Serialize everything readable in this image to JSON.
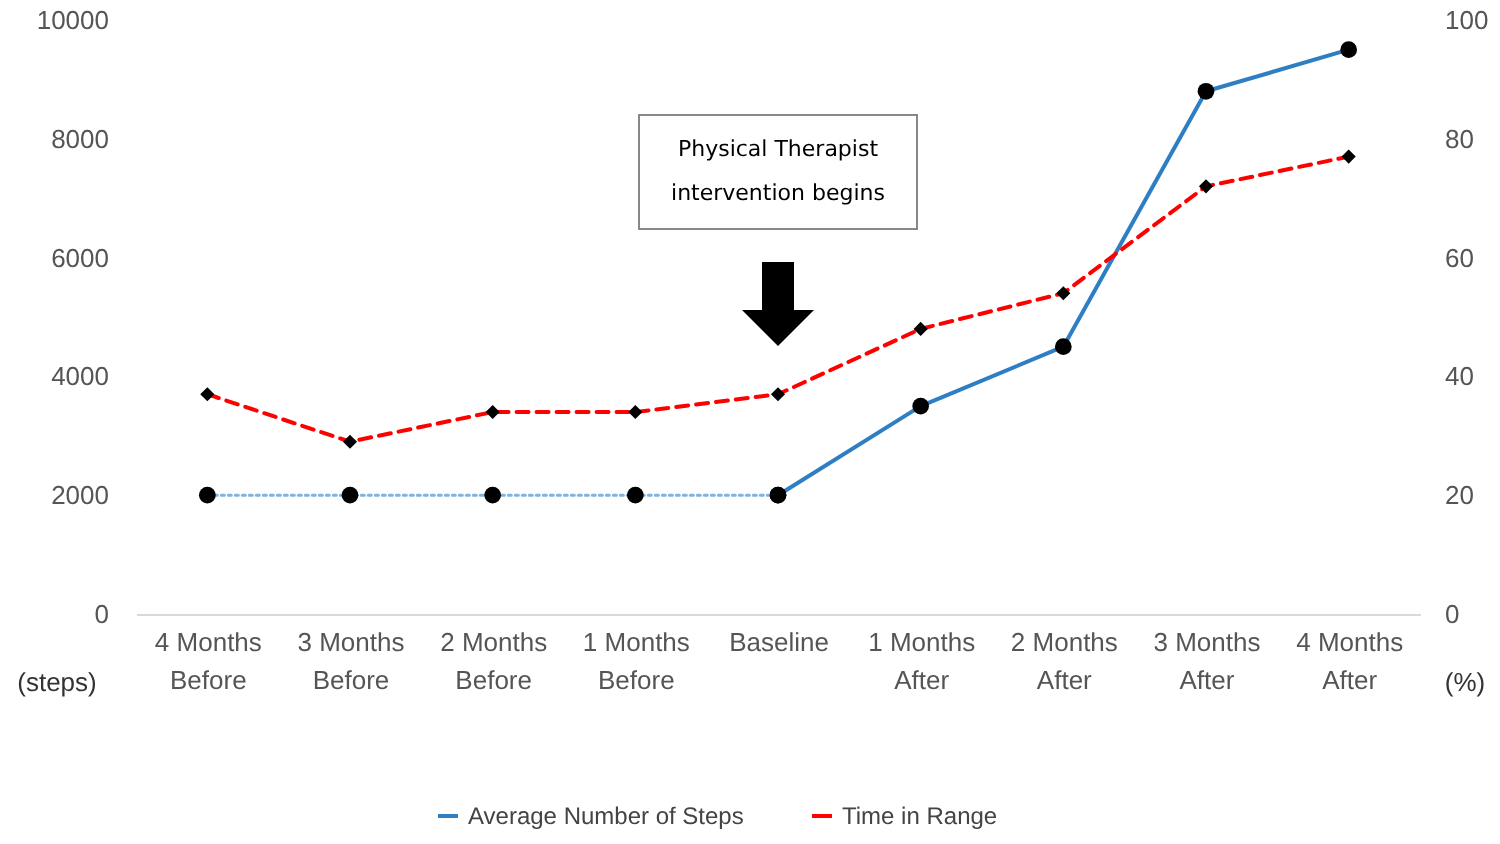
{
  "chart_data": {
    "type": "line",
    "categories": [
      "4 Months Before",
      "3 Months Before",
      "2 Months Before",
      "1 Months Before",
      "Baseline",
      "1 Months After",
      "2 Months After",
      "3 Months After",
      "4 Months After"
    ],
    "series": [
      {
        "name": "Average Number of Steps",
        "color": "#2e7ec4",
        "marker": "circle",
        "line_style": "solid",
        "values": [
          null,
          null,
          null,
          null,
          2000,
          3500,
          4500,
          8800,
          9500
        ]
      },
      {
        "color": "#7fb3e0",
        "marker": "circle",
        "line_style": "dotted",
        "values": [
          2000,
          2000,
          2000,
          2000,
          2000,
          null,
          null,
          null,
          null
        ]
      },
      {
        "name": "Time in Range",
        "color": "#ff0000",
        "marker": "diamond",
        "line_style": "dashed",
        "axis": "y2",
        "values": [
          37,
          29,
          34,
          34,
          37,
          48,
          54,
          72,
          77
        ]
      }
    ],
    "ylabel": "(steps)",
    "y2label": "(%)",
    "ylim": [
      0,
      10000
    ],
    "yticks": [
      0,
      2000,
      4000,
      6000,
      8000,
      10000
    ],
    "y2lim": [
      0,
      100
    ],
    "y2ticks": [
      0,
      20,
      40,
      60,
      80,
      100
    ],
    "annotations": [
      "Physical Therapist intervention begins"
    ],
    "legend": "bottom"
  }
}
